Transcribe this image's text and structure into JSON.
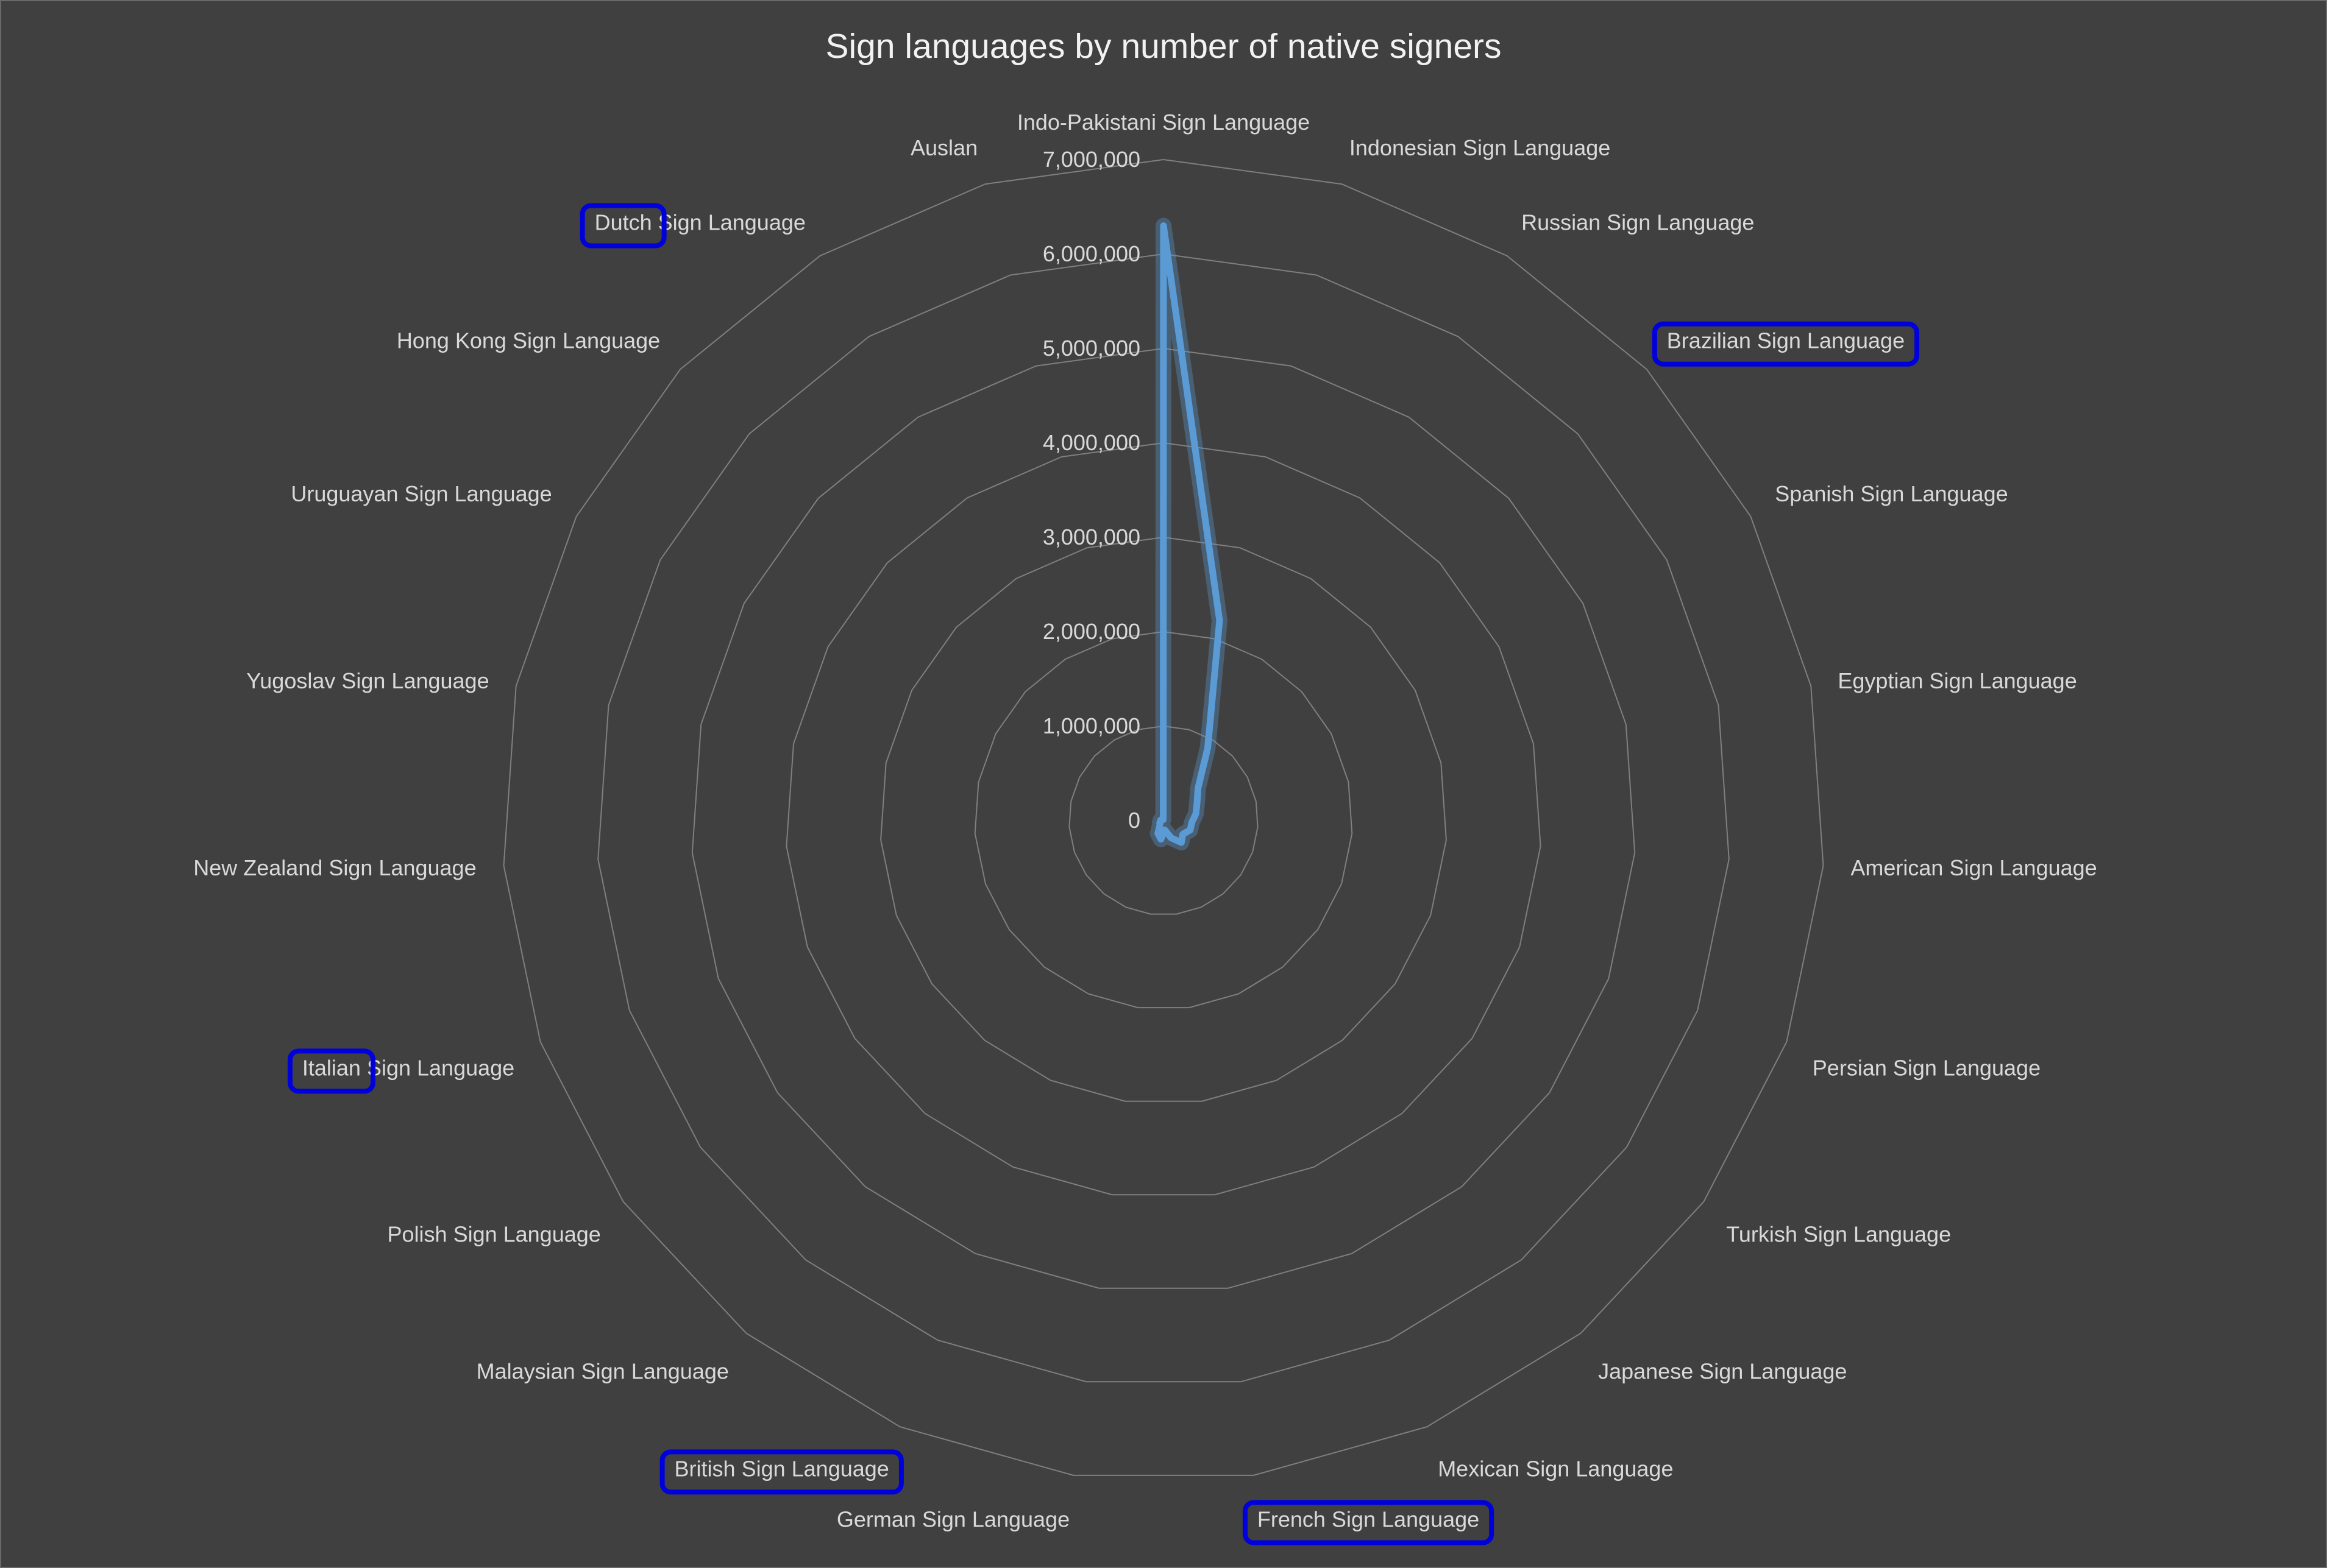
{
  "chart_data": {
    "type": "radar",
    "title": "Sign languages by number of native signers",
    "categories": [
      "Indo-Pakistani Sign Language",
      "Indonesian Sign Language",
      "Russian Sign Language",
      "Brazilian Sign Language",
      "Spanish Sign Language",
      "Egyptian Sign Language",
      "American Sign Language",
      "Persian Sign Language",
      "Turkish Sign Language",
      "Japanese Sign Language",
      "Mexican Sign Language",
      "French Sign Language",
      "German Sign Language",
      "British Sign Language",
      "Malaysian Sign Language",
      "Polish Sign Language",
      "Italian Sign Language",
      "New Zealand Sign Language",
      "Yugoslav Sign Language",
      "Uruguayan Sign Language",
      "Hong Kong Sign Language",
      "Dutch Sign Language",
      "Auslan"
    ],
    "values": [
      6300000,
      2200000,
      900000,
      500000,
      400000,
      350000,
      300000,
      300000,
      250000,
      300000,
      200000,
      100000,
      200000,
      150000,
      60000,
      50000,
      40000,
      20000,
      30000,
      20000,
      20000,
      20000,
      10000
    ],
    "axis": {
      "min": 0,
      "max": 7000000,
      "major_unit": 1000000,
      "tick_labels": [
        "0",
        "1,000,000",
        "2,000,000",
        "3,000,000",
        "4,000,000",
        "5,000,000",
        "6,000,000",
        "7,000,000"
      ]
    },
    "series_color": "#5b9bd5",
    "grid": true,
    "legend": "none",
    "highlighted_labels": [
      {
        "category_index": 21,
        "text": "Dutch"
      },
      {
        "category_index": 3,
        "text": "Brazilian Sign Language"
      },
      {
        "category_index": 16,
        "text": "Italian"
      },
      {
        "category_index": 13,
        "text": "British Sign Language"
      },
      {
        "category_index": 11,
        "text": "French Sign Language"
      }
    ],
    "highlight_color": "#0000dd"
  }
}
